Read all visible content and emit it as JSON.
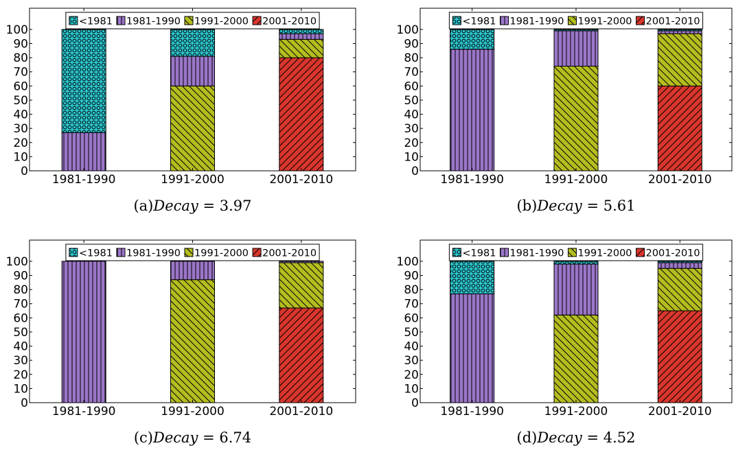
{
  "legend_labels": [
    "<1981",
    "1981-1990",
    "1991-2000",
    "2001-2010"
  ],
  "colors": {
    "<1981": "#2bc4cc",
    "1981-1990": "#9b76c8",
    "1991-2000": "#b4bd1f",
    "2001-2010": "#d9362d"
  },
  "chart_data": [
    {
      "type": "bar",
      "stacked": true,
      "caption_label": "(a)",
      "caption_variable": "Decay",
      "caption_equals": "=",
      "caption_value": "3.97",
      "categories": [
        "1981-1990",
        "1991-2000",
        "2001-2010"
      ],
      "ylim": [
        0,
        115
      ],
      "yticks": [
        0,
        10,
        20,
        30,
        40,
        50,
        60,
        70,
        80,
        90,
        100
      ],
      "legend_position": "top",
      "series": [
        {
          "name": "2001-2010",
          "values": [
            0,
            0,
            80
          ]
        },
        {
          "name": "1991-2000",
          "values": [
            0,
            60,
            13
          ]
        },
        {
          "name": "1981-1990",
          "values": [
            27,
            21,
            4
          ]
        },
        {
          "name": "<1981",
          "values": [
            73,
            19,
            3
          ]
        }
      ]
    },
    {
      "type": "bar",
      "stacked": true,
      "caption_label": "(b)",
      "caption_variable": "Decay",
      "caption_equals": "=",
      "caption_value": "5.61",
      "categories": [
        "1981-1990",
        "1991-2000",
        "2001-2010"
      ],
      "ylim": [
        0,
        115
      ],
      "yticks": [
        0,
        10,
        20,
        30,
        40,
        50,
        60,
        70,
        80,
        90,
        100
      ],
      "legend_position": "top",
      "series": [
        {
          "name": "2001-2010",
          "values": [
            0,
            0,
            60
          ]
        },
        {
          "name": "1991-2000",
          "values": [
            0,
            74,
            37
          ]
        },
        {
          "name": "1981-1990",
          "values": [
            86,
            25,
            2
          ]
        },
        {
          "name": "<1981",
          "values": [
            14,
            1,
            1
          ]
        }
      ]
    },
    {
      "type": "bar",
      "stacked": true,
      "caption_label": "(c)",
      "caption_variable": "Decay",
      "caption_equals": "=",
      "caption_value": "6.74",
      "categories": [
        "1981-1990",
        "1991-2000",
        "2001-2010"
      ],
      "ylim": [
        0,
        115
      ],
      "yticks": [
        0,
        10,
        20,
        30,
        40,
        50,
        60,
        70,
        80,
        90,
        100
      ],
      "legend_position": "top",
      "series": [
        {
          "name": "2001-2010",
          "values": [
            0,
            0,
            67
          ]
        },
        {
          "name": "1991-2000",
          "values": [
            0,
            87,
            32
          ]
        },
        {
          "name": "1981-1990",
          "values": [
            100,
            13,
            1
          ]
        },
        {
          "name": "<1981",
          "values": [
            0,
            0,
            0
          ]
        }
      ]
    },
    {
      "type": "bar",
      "stacked": true,
      "caption_label": "(d)",
      "caption_variable": "Decay",
      "caption_equals": "=",
      "caption_value": "4.52",
      "categories": [
        "1981-1990",
        "1991-2000",
        "2001-2010"
      ],
      "ylim": [
        0,
        115
      ],
      "yticks": [
        0,
        10,
        20,
        30,
        40,
        50,
        60,
        70,
        80,
        90,
        100
      ],
      "legend_position": "top",
      "series": [
        {
          "name": "2001-2010",
          "values": [
            0,
            0,
            65
          ]
        },
        {
          "name": "1991-2000",
          "values": [
            0,
            62,
            30
          ]
        },
        {
          "name": "1981-1990",
          "values": [
            77,
            36,
            4
          ]
        },
        {
          "name": "<1981",
          "values": [
            23,
            2,
            1
          ]
        }
      ]
    }
  ]
}
